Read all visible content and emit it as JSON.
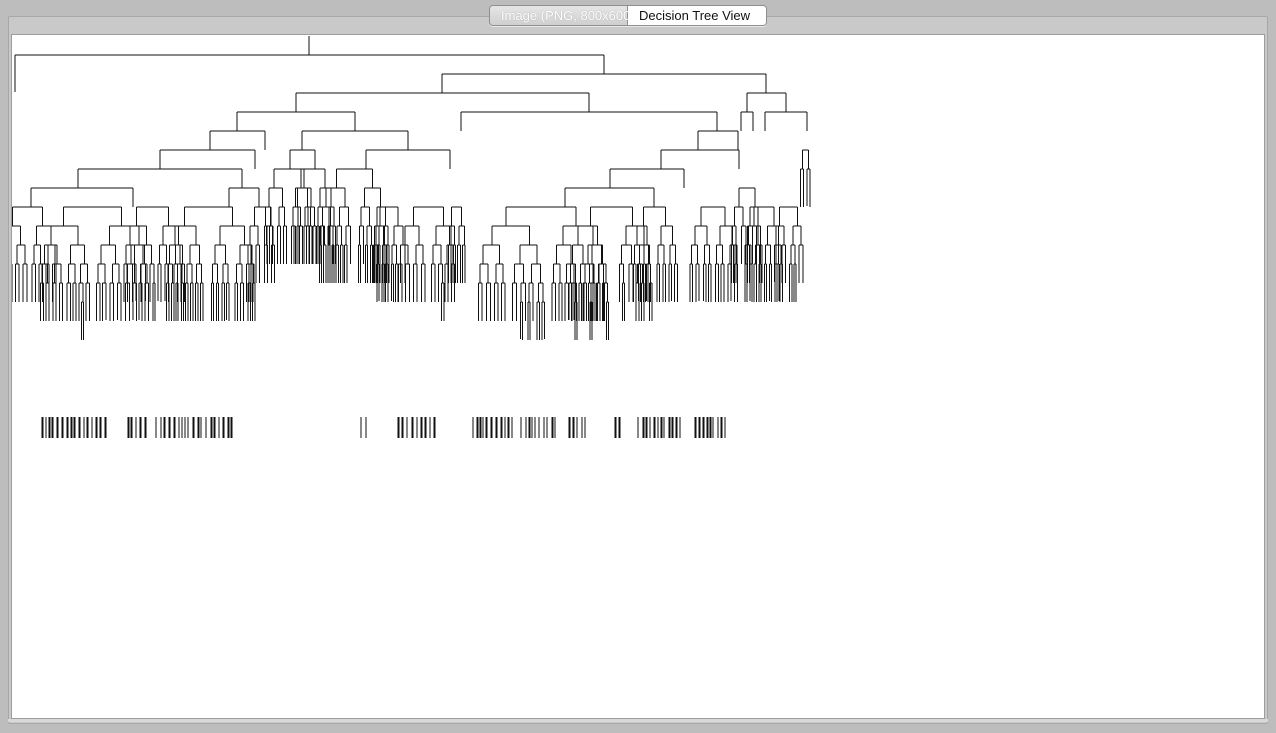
{
  "window": {
    "background_color": "#bdbdbd",
    "canvas_color": "#ffffff",
    "line_color": "#111111"
  },
  "tabs": [
    {
      "label": "Image (PNG, 800x600)",
      "state": "inactive"
    },
    {
      "label": "Decision Tree View",
      "state": "active"
    }
  ],
  "tree_view": {
    "content": "decision tree diagram"
  }
}
